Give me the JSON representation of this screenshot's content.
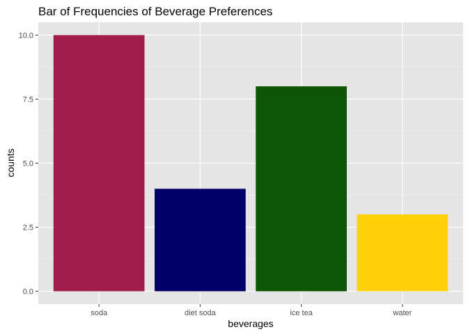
{
  "chart_data": {
    "type": "bar",
    "title": "Bar of Frequencies of Beverage Preferences",
    "xlabel": "beverages",
    "ylabel": "counts",
    "categories": [
      "soda",
      "diet soda",
      "ice tea",
      "water"
    ],
    "values": [
      10,
      4,
      8,
      3
    ],
    "colors": [
      "#a01c4b",
      "#000066",
      "#0b5504",
      "#ffd10a"
    ],
    "ylim": [
      -0.5,
      10.5
    ],
    "yticks": [
      0,
      2.5,
      5,
      7.5,
      10
    ],
    "ytick_labels": [
      "0.0",
      "2.5",
      "5.0",
      "7.5",
      "10.0"
    ],
    "panel_background": "#e5e5e5",
    "grid": true,
    "legend": "none"
  }
}
